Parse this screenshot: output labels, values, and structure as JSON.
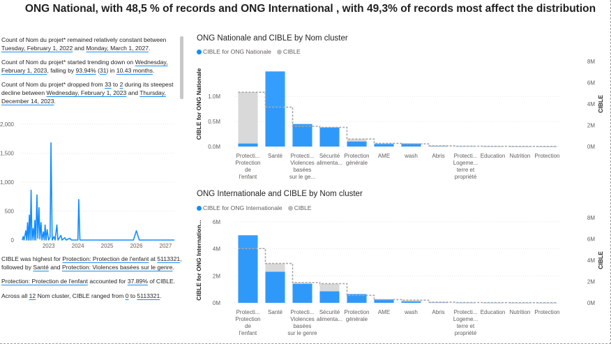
{
  "title": "ONG National, with 48,5 % of records and ONG International , with 49,3% of records most affect the distribution",
  "colors": {
    "primary": "#118dff",
    "secondary": "#d9d9d9",
    "dashed": "#a6a6a6",
    "axis_text": "#605e5c"
  },
  "narrative_top": [
    [
      {
        "t": "Count of Nom du projet* remained relatively constant between "
      },
      {
        "t": "Tuesday, February 1, 2022",
        "h": true
      },
      {
        "t": " and "
      },
      {
        "t": "Monday, March 1, 2027",
        "h": true
      },
      {
        "t": "."
      }
    ],
    [
      {
        "t": "Count of Nom du projet* started trending down on "
      },
      {
        "t": "Wednesday, February 1, 2023",
        "h": true
      },
      {
        "t": ", falling by "
      },
      {
        "t": "93.94%",
        "h": true
      },
      {
        "t": " ("
      },
      {
        "t": "31",
        "h": true
      },
      {
        "t": ") in "
      },
      {
        "t": "10.43 months",
        "h": true
      },
      {
        "t": "."
      }
    ],
    [
      {
        "t": "Count of Nom du projet* dropped from "
      },
      {
        "t": "33",
        "h": true
      },
      {
        "t": " to "
      },
      {
        "t": "2",
        "h": true
      },
      {
        "t": " during its steepest decline between "
      },
      {
        "t": "Wednesday, February 1, 2023",
        "h": true
      },
      {
        "t": " and "
      },
      {
        "t": "Thursday, December 14, 2023",
        "h": true
      },
      {
        "t": "."
      }
    ]
  ],
  "narrative_bottom": [
    [
      {
        "t": "CIBLE was highest for "
      },
      {
        "t": "Protection: Protection de l'enfant",
        "h": true
      },
      {
        "t": " at "
      },
      {
        "t": "5113321",
        "h": true
      },
      {
        "t": ", followed by "
      },
      {
        "t": "Santé",
        "h": true
      },
      {
        "t": " and "
      },
      {
        "t": "Protection: Violences basées sur le genre",
        "h": true
      },
      {
        "t": "."
      }
    ],
    [
      {
        "t": "Protection: Protection de l'enfant",
        "h": true
      },
      {
        "t": " accounted for "
      },
      {
        "t": "37.89%",
        "h": true
      },
      {
        "t": " of CIBLE."
      }
    ],
    [
      {
        "t": "Across all "
      },
      {
        "t": "12",
        "h": true
      },
      {
        "t": " Nom cluster, CIBLE ranged from "
      },
      {
        "t": "0",
        "h": true
      },
      {
        "t": " to "
      },
      {
        "t": "5113321",
        "h": true
      },
      {
        "t": "."
      }
    ]
  ],
  "chart_data": [
    {
      "type": "line",
      "x_ticks": [
        "2023",
        "2024",
        "2025",
        "2026",
        "2027"
      ],
      "y_ticks": [
        "2,000",
        "1,500",
        "1,000",
        "500",
        "0"
      ],
      "ylim": [
        0,
        2000
      ],
      "xlim": [
        2022.1,
        2027.3
      ],
      "points": [
        [
          2022.1,
          0
        ],
        [
          2022.13,
          60
        ],
        [
          2022.16,
          0
        ],
        [
          2022.22,
          160
        ],
        [
          2022.25,
          0
        ],
        [
          2022.28,
          300
        ],
        [
          2022.31,
          0
        ],
        [
          2022.34,
          430
        ],
        [
          2022.37,
          0
        ],
        [
          2022.4,
          860
        ],
        [
          2022.43,
          0
        ],
        [
          2022.47,
          200
        ],
        [
          2022.5,
          0
        ],
        [
          2022.53,
          340
        ],
        [
          2022.56,
          0
        ],
        [
          2022.6,
          780
        ],
        [
          2022.63,
          30
        ],
        [
          2022.67,
          560
        ],
        [
          2022.7,
          20
        ],
        [
          2022.74,
          300
        ],
        [
          2022.77,
          0
        ],
        [
          2022.82,
          140
        ],
        [
          2022.85,
          0
        ],
        [
          2022.88,
          260
        ],
        [
          2022.91,
          0
        ],
        [
          2022.95,
          180
        ],
        [
          2023.0,
          0
        ],
        [
          2023.05,
          50
        ],
        [
          2023.08,
          1680
        ],
        [
          2023.12,
          0
        ],
        [
          2023.18,
          60
        ],
        [
          2023.22,
          0
        ],
        [
          2023.28,
          260
        ],
        [
          2023.32,
          0
        ],
        [
          2023.42,
          80
        ],
        [
          2023.46,
          0
        ],
        [
          2023.55,
          40
        ],
        [
          2023.6,
          0
        ],
        [
          2023.72,
          30
        ],
        [
          2023.78,
          0
        ],
        [
          2024.0,
          0
        ],
        [
          2024.03,
          700
        ],
        [
          2024.07,
          0
        ],
        [
          2024.3,
          0
        ],
        [
          2024.6,
          0
        ],
        [
          2025.0,
          0
        ],
        [
          2025.5,
          0
        ],
        [
          2025.9,
          0
        ],
        [
          2026.0,
          160
        ],
        [
          2026.1,
          0
        ],
        [
          2026.5,
          0
        ],
        [
          2027.0,
          0
        ],
        [
          2027.3,
          0
        ]
      ]
    },
    {
      "type": "bar",
      "title": "ONG Nationale and CIBLE by Nom cluster",
      "legend": [
        "CIBLE for ONG Nationale",
        "CIBLE"
      ],
      "ylabel": "CIBLE for ONG Nationale",
      "y2label": "CIBLE",
      "categories": [
        [
          "Protecti...",
          "Protection",
          "de",
          "l'enfant"
        ],
        [
          "Santé"
        ],
        [
          "Protecti...",
          "Violences",
          "basées",
          "sur le ge..."
        ],
        [
          "Sécurité",
          "alimenta..."
        ],
        [
          "Protection",
          "générale"
        ],
        [
          "AME"
        ],
        [
          "wash"
        ],
        [
          "Abris"
        ],
        [
          "Protecti...",
          "Logeme...",
          "terre et",
          "propriété"
        ],
        [
          "Education"
        ],
        [
          "Nutrition"
        ],
        [
          "Protection"
        ]
      ],
      "y_ticks": [
        "1.0M",
        "0.5M",
        "0.0M"
      ],
      "y2_ticks": [
        "8M",
        "6M",
        "4M",
        "2M",
        "0M"
      ],
      "ylim": [
        0,
        1700000
      ],
      "y2lim": [
        0,
        8000000
      ],
      "primary": [
        60000,
        1500000,
        450000,
        380000,
        100000,
        50000,
        60000,
        10000,
        5000,
        3000,
        2000,
        1000
      ],
      "secondary": [
        5100000,
        3700000,
        1900000,
        1800000,
        700000,
        300000,
        250000,
        60000,
        30000,
        20000,
        15000,
        10000
      ]
    },
    {
      "type": "bar",
      "title": "ONG Internationale and CIBLE by Nom cluster",
      "legend": [
        "CIBLE for ONG Internationale",
        "CIBLE"
      ],
      "ylabel": "CIBLE for ONG Internation...",
      "y2label": "CIBLE",
      "categories": [
        [
          "Protecti...",
          "Protection",
          "de",
          "l'enfant"
        ],
        [
          "Santé"
        ],
        [
          "Protecti...",
          "Violences",
          "basées",
          "sur le genre"
        ],
        [
          "Sécurité",
          "alimenta..."
        ],
        [
          "Protection",
          "générale"
        ],
        [
          "AME"
        ],
        [
          "wash"
        ],
        [
          "Abris"
        ],
        [
          "Protecti...",
          "Logeme...",
          "terre et",
          "propriété"
        ],
        [
          "Education"
        ],
        [
          "Nutrition"
        ],
        [
          "Protection"
        ]
      ],
      "y_ticks": [
        "6M",
        "4M",
        "2M",
        "0M"
      ],
      "y2_ticks": [
        "8M",
        "6M",
        "4M",
        "2M",
        "0M"
      ],
      "ylim": [
        0,
        6300000
      ],
      "y2lim": [
        0,
        8000000
      ],
      "primary": [
        5000000,
        2300000,
        1400000,
        850000,
        650000,
        250000,
        100000,
        20000,
        10000,
        5000,
        4000,
        2000
      ],
      "secondary": [
        5100000,
        3700000,
        1900000,
        1800000,
        700000,
        300000,
        250000,
        60000,
        30000,
        20000,
        15000,
        10000
      ]
    }
  ]
}
